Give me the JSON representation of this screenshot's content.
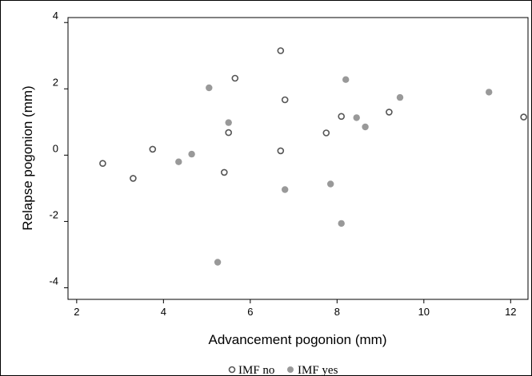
{
  "chart_data": {
    "type": "scatter",
    "xlabel": "Advancement pogonion (mm)",
    "ylabel": "Relapse pogonion (mm)",
    "xlim": [
      1.8,
      12.4
    ],
    "ylim": [
      -4.35,
      4.15
    ],
    "x_ticks": [
      2,
      4,
      6,
      8,
      10,
      12
    ],
    "y_ticks": [
      4,
      2,
      0,
      -2,
      -4
    ],
    "grid": false,
    "legend_position": "bottom-center",
    "series": [
      {
        "name": "IMF no",
        "marker": "hollow-circle",
        "color": "#555555",
        "points": [
          [
            2.6,
            -0.25
          ],
          [
            3.3,
            -0.7
          ],
          [
            3.75,
            0.18
          ],
          [
            5.4,
            -0.52
          ],
          [
            5.5,
            0.68
          ],
          [
            5.65,
            2.32
          ],
          [
            6.7,
            3.15
          ],
          [
            6.7,
            0.13
          ],
          [
            6.8,
            1.67
          ],
          [
            7.75,
            0.67
          ],
          [
            8.1,
            1.17
          ],
          [
            9.2,
            1.3
          ],
          [
            12.3,
            1.15
          ]
        ]
      },
      {
        "name": "IMF yes",
        "marker": "filled-circle",
        "color": "#999999",
        "points": [
          [
            4.35,
            -0.2
          ],
          [
            4.65,
            0.03
          ],
          [
            5.05,
            2.03
          ],
          [
            5.25,
            -3.23
          ],
          [
            5.5,
            0.98
          ],
          [
            6.8,
            -1.04
          ],
          [
            7.85,
            -0.87
          ],
          [
            8.1,
            -2.06
          ],
          [
            8.2,
            2.28
          ],
          [
            8.45,
            1.13
          ],
          [
            8.65,
            0.85
          ],
          [
            9.45,
            1.74
          ],
          [
            11.5,
            1.9
          ]
        ]
      }
    ]
  }
}
